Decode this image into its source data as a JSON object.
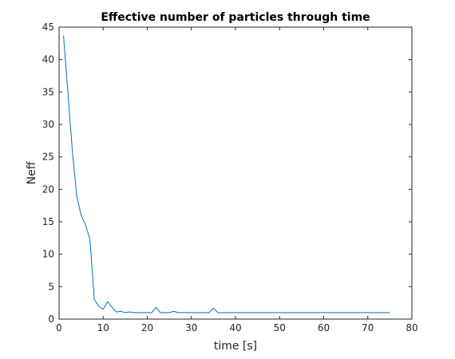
{
  "chart_data": {
    "type": "line",
    "title": "Effective number of particles through time",
    "xlabel": "time [s]",
    "ylabel": "Neff",
    "xlim": [
      0,
      80
    ],
    "ylim": [
      0,
      45
    ],
    "xticks": [
      0,
      10,
      20,
      30,
      40,
      50,
      60,
      70,
      80
    ],
    "yticks": [
      0,
      5,
      10,
      15,
      20,
      25,
      30,
      35,
      40,
      45
    ],
    "grid": false,
    "series": [
      {
        "color": "#0072bd",
        "x": [
          1,
          2,
          3,
          4,
          5,
          6,
          7,
          8,
          9,
          10,
          11,
          12,
          13,
          14,
          15,
          16,
          17,
          18,
          19,
          20,
          21,
          22,
          23,
          24,
          25,
          26,
          27,
          28,
          29,
          30,
          31,
          32,
          33,
          34,
          35,
          36,
          37,
          38,
          39,
          40,
          41,
          42,
          43,
          44,
          45,
          46,
          47,
          48,
          49,
          50,
          51,
          52,
          53,
          54,
          55,
          56,
          57,
          58,
          59,
          60,
          61,
          62,
          63,
          64,
          65,
          66,
          67,
          68,
          69,
          70,
          71,
          72,
          73,
          74,
          75
        ],
        "y": [
          43.7,
          35,
          26,
          19,
          16,
          14.5,
          12.3,
          3,
          2,
          1.5,
          2.7,
          1.8,
          1.1,
          1.2,
          1.0,
          1.1,
          1.0,
          1.0,
          1.0,
          1.0,
          1.0,
          1.8,
          1.0,
          1.0,
          1.0,
          1.2,
          1.0,
          1.0,
          1.0,
          1.0,
          1.0,
          1.0,
          1.0,
          1.0,
          1.7,
          1.0,
          1.0,
          1.0,
          1.0,
          1.0,
          1.0,
          1.0,
          1.0,
          1.0,
          1.0,
          1.0,
          1.0,
          1.0,
          1.0,
          1.0,
          1.0,
          1.0,
          1.0,
          1.0,
          1.0,
          1.0,
          1.0,
          1.0,
          1.0,
          1.0,
          1.0,
          1.0,
          1.0,
          1.0,
          1.0,
          1.0,
          1.0,
          1.0,
          1.0,
          1.0,
          1.0,
          1.0,
          1.0,
          1.0,
          1.0
        ]
      }
    ]
  }
}
